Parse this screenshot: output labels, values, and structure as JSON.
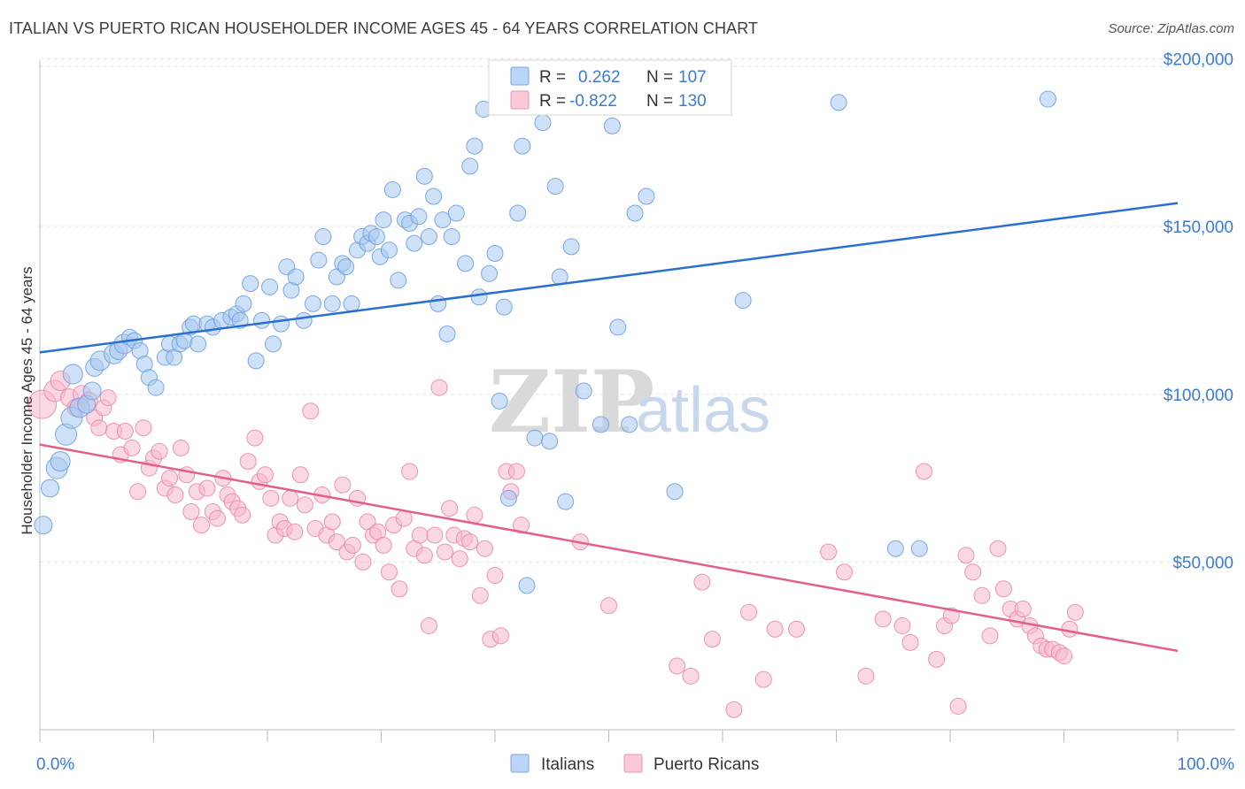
{
  "title": "ITALIAN VS PUERTO RICAN HOUSEHOLDER INCOME AGES 45 - 64 YEARS CORRELATION CHART",
  "source": "Source: ZipAtlas.com",
  "watermark": {
    "zip": "ZIP",
    "atlas": "atlas"
  },
  "legend": {
    "r_label": "R =",
    "n_label": "N =",
    "rows": [
      {
        "r": "0.262",
        "n": "107"
      },
      {
        "r": "-0.822",
        "n": "130"
      }
    ]
  },
  "bottom_legend": [
    "Italians",
    "Puerto Ricans"
  ],
  "chart_data": {
    "type": "scatter",
    "title": "ITALIAN VS PUERTO RICAN HOUSEHOLDER INCOME AGES 45 - 64 YEARS CORRELATION CHART",
    "xlabel": "",
    "ylabel": "Householder Income Ages 45 - 64 years",
    "xlim": [
      0,
      100
    ],
    "ylim": [
      0,
      207000
    ],
    "x_tick_labels": [
      "0.0%",
      "100.0%"
    ],
    "y_ticks": [
      50000,
      100000,
      150000,
      200000
    ],
    "y_tick_labels": [
      "$50,000",
      "$100,000",
      "$150,000",
      "$200,000"
    ],
    "grid": true,
    "legend_position": "top-center",
    "colors": {
      "Italians": "#a8c8f0",
      "Puerto Ricans": "#f5b8cc",
      "italian_line": "#2a6fcf",
      "pr_line": "#e0608a"
    },
    "series": [
      {
        "name": "Italians",
        "r": 0.262,
        "n": 107,
        "trend": {
          "x": [
            0,
            100
          ],
          "y": [
            112500,
            157000
          ]
        },
        "points": [
          [
            0.3,
            61000,
            10
          ],
          [
            0.9,
            72000,
            10
          ],
          [
            1.5,
            78000,
            12
          ],
          [
            1.8,
            80000,
            11
          ],
          [
            2.3,
            88000,
            12
          ],
          [
            2.8,
            93000,
            12
          ],
          [
            3.5,
            96000,
            11
          ],
          [
            4.1,
            97000,
            10
          ],
          [
            2.9,
            106000,
            11
          ],
          [
            4.6,
            101000,
            10
          ],
          [
            4.8,
            108000,
            10
          ],
          [
            5.3,
            110000,
            11
          ],
          [
            6.5,
            112000,
            11
          ],
          [
            6.9,
            113000,
            10
          ],
          [
            7.4,
            115000,
            11
          ],
          [
            7.9,
            117000,
            9
          ],
          [
            8.3,
            116000,
            9
          ],
          [
            8.8,
            113000,
            9
          ],
          [
            9.2,
            109000,
            9
          ],
          [
            9.6,
            105000,
            9
          ],
          [
            10.2,
            102000,
            9
          ],
          [
            11.0,
            111000,
            9
          ],
          [
            11.4,
            115000,
            9
          ],
          [
            11.8,
            111000,
            9
          ],
          [
            12.3,
            115000,
            9
          ],
          [
            12.7,
            116000,
            9
          ],
          [
            13.2,
            120000,
            9
          ],
          [
            13.5,
            121000,
            9
          ],
          [
            13.9,
            115000,
            9
          ],
          [
            14.7,
            121000,
            9
          ],
          [
            15.2,
            120000,
            9
          ],
          [
            16.0,
            122000,
            9
          ],
          [
            16.8,
            123000,
            9
          ],
          [
            17.3,
            124000,
            9
          ],
          [
            17.6,
            122000,
            9
          ],
          [
            17.9,
            127000,
            9
          ],
          [
            18.5,
            133000,
            9
          ],
          [
            19.0,
            110000,
            9
          ],
          [
            19.5,
            122000,
            9
          ],
          [
            20.2,
            132000,
            9
          ],
          [
            20.5,
            115000,
            9
          ],
          [
            21.2,
            121000,
            9
          ],
          [
            21.7,
            138000,
            9
          ],
          [
            22.1,
            131000,
            9
          ],
          [
            22.5,
            135000,
            9
          ],
          [
            23.2,
            122000,
            9
          ],
          [
            24.0,
            127000,
            9
          ],
          [
            24.5,
            140000,
            9
          ],
          [
            24.9,
            147000,
            9
          ],
          [
            25.7,
            127000,
            9
          ],
          [
            26.1,
            135000,
            9
          ],
          [
            26.6,
            139000,
            9
          ],
          [
            26.9,
            138000,
            9
          ],
          [
            27.4,
            127000,
            9
          ],
          [
            27.9,
            143000,
            9
          ],
          [
            28.3,
            147000,
            9
          ],
          [
            28.8,
            145000,
            9
          ],
          [
            29.1,
            148000,
            9
          ],
          [
            29.6,
            147000,
            9
          ],
          [
            29.9,
            141000,
            9
          ],
          [
            30.2,
            152000,
            9
          ],
          [
            30.7,
            143000,
            9
          ],
          [
            31.0,
            161000,
            9
          ],
          [
            31.5,
            134000,
            9
          ],
          [
            32.1,
            152000,
            9
          ],
          [
            32.5,
            151000,
            9
          ],
          [
            32.9,
            145000,
            9
          ],
          [
            33.3,
            153000,
            9
          ],
          [
            33.8,
            165000,
            9
          ],
          [
            34.2,
            147000,
            9
          ],
          [
            34.6,
            159000,
            9
          ],
          [
            35.0,
            127000,
            9
          ],
          [
            35.4,
            152000,
            9
          ],
          [
            35.8,
            118000,
            9
          ],
          [
            36.2,
            147000,
            9
          ],
          [
            36.6,
            154000,
            9
          ],
          [
            37.4,
            139000,
            9
          ],
          [
            37.8,
            168000,
            9
          ],
          [
            38.2,
            174000,
            9
          ],
          [
            38.6,
            129000,
            9
          ],
          [
            39.0,
            185000,
            9
          ],
          [
            39.5,
            136000,
            9
          ],
          [
            40.0,
            142000,
            9
          ],
          [
            40.4,
            98000,
            9
          ],
          [
            40.8,
            126000,
            9
          ],
          [
            41.2,
            69000,
            9
          ],
          [
            42.0,
            154000,
            9
          ],
          [
            42.4,
            174000,
            9
          ],
          [
            42.8,
            43000,
            9
          ],
          [
            43.5,
            87000,
            9
          ],
          [
            44.2,
            181000,
            9
          ],
          [
            44.8,
            86000,
            9
          ],
          [
            45.3,
            162000,
            9
          ],
          [
            45.7,
            135000,
            9
          ],
          [
            46.2,
            68000,
            9
          ],
          [
            46.7,
            144000,
            9
          ],
          [
            47.8,
            101000,
            9
          ],
          [
            49.3,
            91000,
            9
          ],
          [
            50.3,
            180000,
            9
          ],
          [
            50.8,
            120000,
            9
          ],
          [
            51.8,
            91000,
            9
          ],
          [
            52.3,
            154000,
            9
          ],
          [
            53.3,
            159000,
            9
          ],
          [
            55.8,
            71000,
            9
          ],
          [
            61.8,
            128000,
            9
          ],
          [
            70.2,
            187000,
            9
          ],
          [
            75.2,
            54000,
            9
          ],
          [
            77.3,
            54000,
            9
          ],
          [
            88.6,
            188000,
            9
          ]
        ]
      },
      {
        "name": "Puerto Ricans",
        "r": -0.822,
        "n": 130,
        "trend": {
          "x": [
            0,
            100
          ],
          "y": [
            85000,
            23500
          ]
        },
        "points": [
          [
            0.2,
            97000,
            16
          ],
          [
            1.3,
            101000,
            12
          ],
          [
            1.8,
            104000,
            11
          ],
          [
            2.6,
            99000,
            10
          ],
          [
            3.2,
            96000,
            10
          ],
          [
            3.7,
            100000,
            10
          ],
          [
            4.3,
            98000,
            10
          ],
          [
            4.8,
            93000,
            9
          ],
          [
            5.2,
            90000,
            9
          ],
          [
            5.6,
            96000,
            9
          ],
          [
            6.0,
            99000,
            9
          ],
          [
            6.5,
            89000,
            9
          ],
          [
            7.1,
            82000,
            9
          ],
          [
            7.5,
            89000,
            9
          ],
          [
            8.1,
            84000,
            9
          ],
          [
            8.6,
            71000,
            9
          ],
          [
            9.1,
            90000,
            9
          ],
          [
            9.6,
            78000,
            9
          ],
          [
            10.0,
            81000,
            9
          ],
          [
            10.5,
            83000,
            9
          ],
          [
            11.0,
            72000,
            9
          ],
          [
            11.4,
            75000,
            9
          ],
          [
            11.9,
            70000,
            9
          ],
          [
            12.4,
            84000,
            9
          ],
          [
            12.9,
            76000,
            9
          ],
          [
            13.3,
            65000,
            9
          ],
          [
            13.8,
            71000,
            9
          ],
          [
            14.2,
            61000,
            9
          ],
          [
            14.7,
            72000,
            9
          ],
          [
            15.2,
            65000,
            9
          ],
          [
            15.6,
            63000,
            9
          ],
          [
            16.1,
            75000,
            9
          ],
          [
            16.5,
            70000,
            9
          ],
          [
            16.9,
            68000,
            9
          ],
          [
            17.4,
            66000,
            9
          ],
          [
            17.8,
            64000,
            9
          ],
          [
            18.3,
            80000,
            9
          ],
          [
            18.9,
            87000,
            9
          ],
          [
            19.3,
            74000,
            9
          ],
          [
            19.8,
            76000,
            9
          ],
          [
            20.3,
            69000,
            9
          ],
          [
            20.7,
            58000,
            9
          ],
          [
            21.1,
            62000,
            9
          ],
          [
            21.5,
            60000,
            9
          ],
          [
            22.0,
            69000,
            9
          ],
          [
            22.4,
            59000,
            9
          ],
          [
            22.9,
            76000,
            9
          ],
          [
            23.3,
            67000,
            9
          ],
          [
            23.8,
            95000,
            9
          ],
          [
            24.2,
            60000,
            9
          ],
          [
            24.8,
            70000,
            9
          ],
          [
            25.2,
            58000,
            9
          ],
          [
            25.7,
            62000,
            9
          ],
          [
            26.1,
            56000,
            9
          ],
          [
            26.6,
            73000,
            9
          ],
          [
            27.0,
            53000,
            9
          ],
          [
            27.5,
            55000,
            9
          ],
          [
            27.9,
            69000,
            9
          ],
          [
            28.4,
            50000,
            9
          ],
          [
            28.8,
            62000,
            9
          ],
          [
            29.3,
            58000,
            9
          ],
          [
            29.7,
            59000,
            9
          ],
          [
            30.2,
            55000,
            9
          ],
          [
            30.7,
            47000,
            9
          ],
          [
            31.1,
            61000,
            9
          ],
          [
            31.6,
            42000,
            9
          ],
          [
            32.0,
            63000,
            9
          ],
          [
            32.5,
            77000,
            9
          ],
          [
            32.9,
            54000,
            9
          ],
          [
            33.4,
            58000,
            9
          ],
          [
            33.8,
            52000,
            9
          ],
          [
            34.2,
            31000,
            9
          ],
          [
            34.7,
            58000,
            9
          ],
          [
            35.1,
            102000,
            9
          ],
          [
            35.6,
            53000,
            9
          ],
          [
            36.0,
            66000,
            9
          ],
          [
            36.4,
            58000,
            9
          ],
          [
            36.9,
            51000,
            9
          ],
          [
            37.3,
            57000,
            9
          ],
          [
            37.8,
            56000,
            9
          ],
          [
            38.2,
            64000,
            9
          ],
          [
            38.7,
            40000,
            9
          ],
          [
            39.1,
            54000,
            9
          ],
          [
            39.6,
            27000,
            9
          ],
          [
            40.0,
            46000,
            9
          ],
          [
            40.5,
            28000,
            9
          ],
          [
            41.0,
            77000,
            9
          ],
          [
            41.4,
            71000,
            9
          ],
          [
            41.9,
            77000,
            9
          ],
          [
            42.3,
            61000,
            9
          ],
          [
            47.5,
            56000,
            9
          ],
          [
            50.0,
            37000,
            9
          ],
          [
            56.0,
            19000,
            9
          ],
          [
            57.2,
            16000,
            9
          ],
          [
            58.2,
            44000,
            9
          ],
          [
            59.1,
            27000,
            9
          ],
          [
            61.0,
            6000,
            9
          ],
          [
            62.3,
            35000,
            9
          ],
          [
            63.6,
            15000,
            9
          ],
          [
            64.6,
            30000,
            9
          ],
          [
            66.5,
            30000,
            9
          ],
          [
            69.3,
            53000,
            9
          ],
          [
            70.7,
            47000,
            9
          ],
          [
            72.6,
            16000,
            9
          ],
          [
            74.1,
            33000,
            9
          ],
          [
            75.8,
            31000,
            9
          ],
          [
            76.5,
            26000,
            9
          ],
          [
            77.7,
            77000,
            9
          ],
          [
            78.8,
            21000,
            9
          ],
          [
            79.5,
            31000,
            9
          ],
          [
            80.1,
            34000,
            9
          ],
          [
            80.7,
            7000,
            9
          ],
          [
            81.4,
            52000,
            9
          ],
          [
            82.0,
            47000,
            9
          ],
          [
            82.8,
            40000,
            9
          ],
          [
            83.5,
            28000,
            9
          ],
          [
            84.2,
            54000,
            9
          ],
          [
            84.7,
            42000,
            9
          ],
          [
            85.3,
            36000,
            9
          ],
          [
            85.9,
            33000,
            9
          ],
          [
            86.4,
            36000,
            9
          ],
          [
            87.0,
            31000,
            9
          ],
          [
            87.5,
            28000,
            9
          ],
          [
            88.0,
            25000,
            9
          ],
          [
            88.5,
            24000,
            9
          ],
          [
            89.0,
            24000,
            9
          ],
          [
            89.6,
            23000,
            9
          ],
          [
            90.0,
            22000,
            9
          ],
          [
            90.5,
            30000,
            9
          ],
          [
            91.0,
            35000,
            9
          ]
        ]
      }
    ]
  }
}
